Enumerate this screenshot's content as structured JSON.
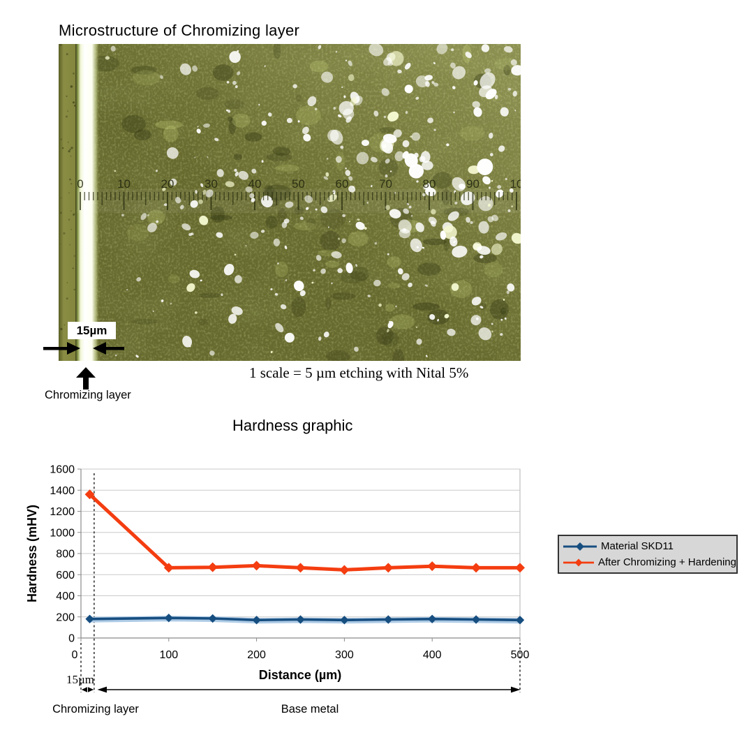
{
  "micro": {
    "title": "Microstructure of Chromizing layer",
    "scale_label": "15µm",
    "layer_label": "Chromizing layer",
    "caption": "1 scale = 5 µm etching with Nital 5%",
    "ruler_labels": [
      "0",
      "10",
      "20",
      "30",
      "40",
      "50",
      "60",
      "70",
      "80",
      "90",
      "10"
    ]
  },
  "chart": {
    "title": "Hardness graphic",
    "annotations": {
      "width_label": "15µm",
      "layer_label": "Chromizing layer",
      "base_label": "Base metal"
    }
  },
  "chart_data": {
    "type": "line",
    "title": "Hardness graphic",
    "xlabel": "Distance (µm)",
    "ylabel": "Hardness (mHV)",
    "xlim": [
      0,
      500
    ],
    "ylim": [
      0,
      1600
    ],
    "x_ticks": [
      0,
      100,
      200,
      300,
      400,
      500
    ],
    "y_ticks": [
      0,
      200,
      400,
      600,
      800,
      1000,
      1200,
      1400,
      1600
    ],
    "grid": "horizontal",
    "legend_position": "right-outside",
    "chromizing_width_um": 15,
    "x": [
      10,
      100,
      150,
      200,
      250,
      300,
      350,
      400,
      450,
      500
    ],
    "series": [
      {
        "name": "Material SKD11",
        "color": "#174e80",
        "halo": "#aecbe6",
        "values": [
          180,
          190,
          185,
          170,
          175,
          170,
          175,
          180,
          175,
          170
        ]
      },
      {
        "name": "After Chromizing + Hardening",
        "color": "#f43d10",
        "halo": "",
        "values": [
          1360,
          665,
          670,
          685,
          665,
          645,
          665,
          680,
          665,
          665
        ]
      }
    ]
  }
}
